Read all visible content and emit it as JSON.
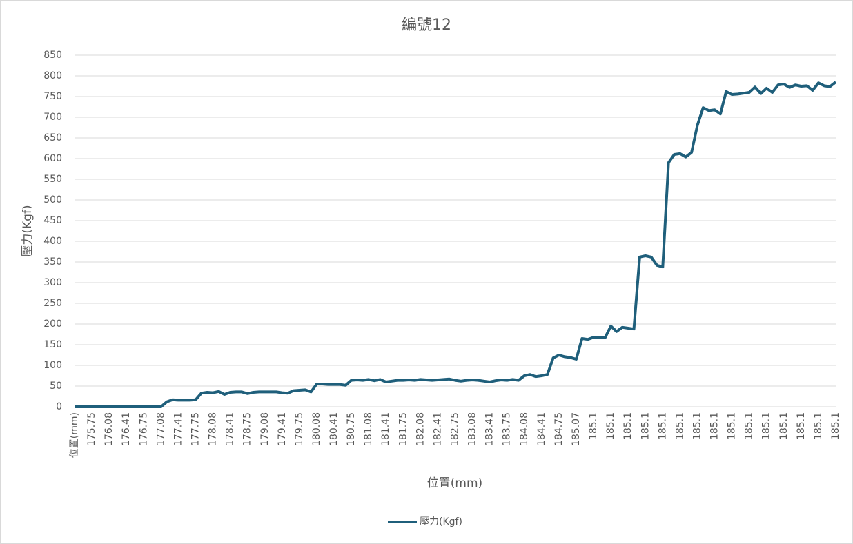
{
  "chart_data": {
    "type": "line",
    "title": "編號12",
    "x_label": "位置(mm)",
    "y_label": "壓力(Kgf)",
    "categories": [
      "位置(mm)",
      null,
      null,
      "175.75",
      null,
      null,
      "176.08",
      null,
      null,
      "176.41",
      null,
      null,
      "176.75",
      null,
      null,
      "177.08",
      null,
      null,
      "177.41",
      null,
      null,
      "177.75",
      null,
      null,
      "178.08",
      null,
      null,
      "178.41",
      null,
      null,
      "178.75",
      null,
      null,
      "179.08",
      null,
      null,
      "179.41",
      null,
      null,
      "179.75",
      null,
      null,
      "180.08",
      null,
      null,
      "180.41",
      null,
      null,
      "180.75",
      null,
      null,
      "181.08",
      null,
      null,
      "181.41",
      null,
      null,
      "181.75",
      null,
      null,
      "182.08",
      null,
      null,
      "182.41",
      null,
      null,
      "182.75",
      null,
      null,
      "183.08",
      null,
      null,
      "183.41",
      null,
      null,
      "183.75",
      null,
      null,
      "184.08",
      null,
      null,
      "184.41",
      null,
      null,
      "184.75",
      null,
      null,
      "185.07",
      null,
      null,
      "185.1",
      null,
      null,
      "185.1",
      null,
      null,
      "185.1",
      null,
      null,
      "185.1",
      null,
      null,
      "185.1",
      null,
      null,
      "185.1",
      null,
      null,
      "185.1",
      null,
      null,
      "185.1",
      null,
      null,
      "185.1",
      null,
      null,
      "185.1",
      null,
      null,
      "185.1",
      null,
      null,
      "185.1",
      null,
      null,
      "185.1",
      null,
      null,
      "185.1",
      null,
      null,
      "185.1"
    ],
    "series": [
      {
        "name": "壓力(Kgf)",
        "color": "#1f5f7b",
        "values": [
          0,
          0,
          0,
          0,
          0,
          0,
          0,
          0,
          0,
          0,
          0,
          0,
          0,
          0,
          0,
          0,
          12,
          17,
          16,
          16,
          16,
          17,
          33,
          35,
          34,
          37,
          30,
          35,
          36,
          36,
          32,
          35,
          36,
          36,
          36,
          36,
          34,
          33,
          39,
          40,
          41,
          36,
          55,
          55,
          54,
          54,
          54,
          52,
          64,
          65,
          64,
          66,
          63,
          66,
          60,
          62,
          64,
          64,
          65,
          64,
          66,
          65,
          64,
          65,
          66,
          67,
          64,
          62,
          64,
          65,
          64,
          62,
          60,
          63,
          65,
          64,
          66,
          64,
          75,
          78,
          73,
          75,
          78,
          118,
          125,
          121,
          119,
          115,
          165,
          163,
          168,
          168,
          167,
          195,
          182,
          192,
          190,
          188,
          362,
          365,
          362,
          342,
          338,
          590,
          610,
          612,
          604,
          615,
          680,
          723,
          716,
          718,
          708,
          762,
          755,
          756,
          758,
          760,
          773,
          757,
          770,
          760,
          778,
          780,
          772,
          778,
          775,
          776,
          765,
          783,
          776,
          774,
          785
        ]
      }
    ],
    "ylim": [
      0,
      850
    ],
    "yticks": [
      0,
      50,
      100,
      150,
      200,
      250,
      300,
      350,
      400,
      450,
      500,
      550,
      600,
      650,
      700,
      750,
      800,
      850
    ],
    "grid": true,
    "legend": "bottom"
  }
}
